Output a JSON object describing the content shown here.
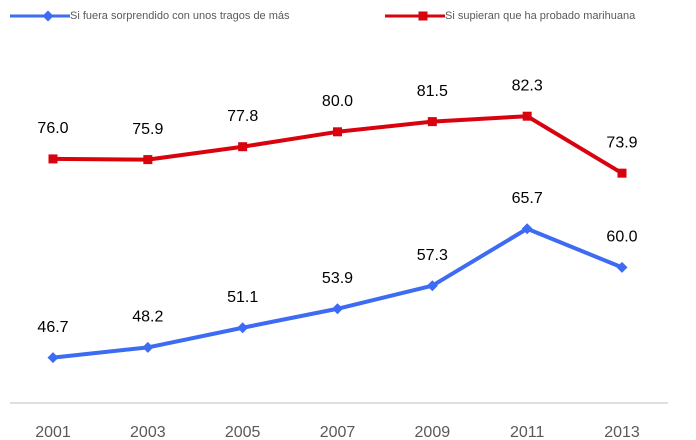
{
  "chart_data": {
    "type": "line",
    "categories": [
      "2001",
      "2003",
      "2005",
      "2007",
      "2009",
      "2011",
      "2013"
    ],
    "series": [
      {
        "name": "Si fuera sorprendido con unos tragos de más",
        "color": "#3d6bf2",
        "marker": "diamond",
        "values": [
          46.7,
          48.2,
          51.1,
          53.9,
          57.3,
          65.7,
          60
        ],
        "value_labels": [
          "46.7",
          "48.2",
          "51.1",
          "53.9",
          "57.3",
          "65.7",
          "60.0"
        ]
      },
      {
        "name": "Si supieran que ha probado marihuana",
        "color": "#d9020f",
        "marker": "square",
        "values": [
          76,
          75.9,
          77.8,
          80,
          81.5,
          82.3,
          73.9
        ],
        "value_labels": [
          "76.0",
          "75.9",
          "77.8",
          "80.0",
          "81.5",
          "82.3",
          "73.9"
        ]
      }
    ],
    "ylim": [
      40,
      90
    ]
  }
}
